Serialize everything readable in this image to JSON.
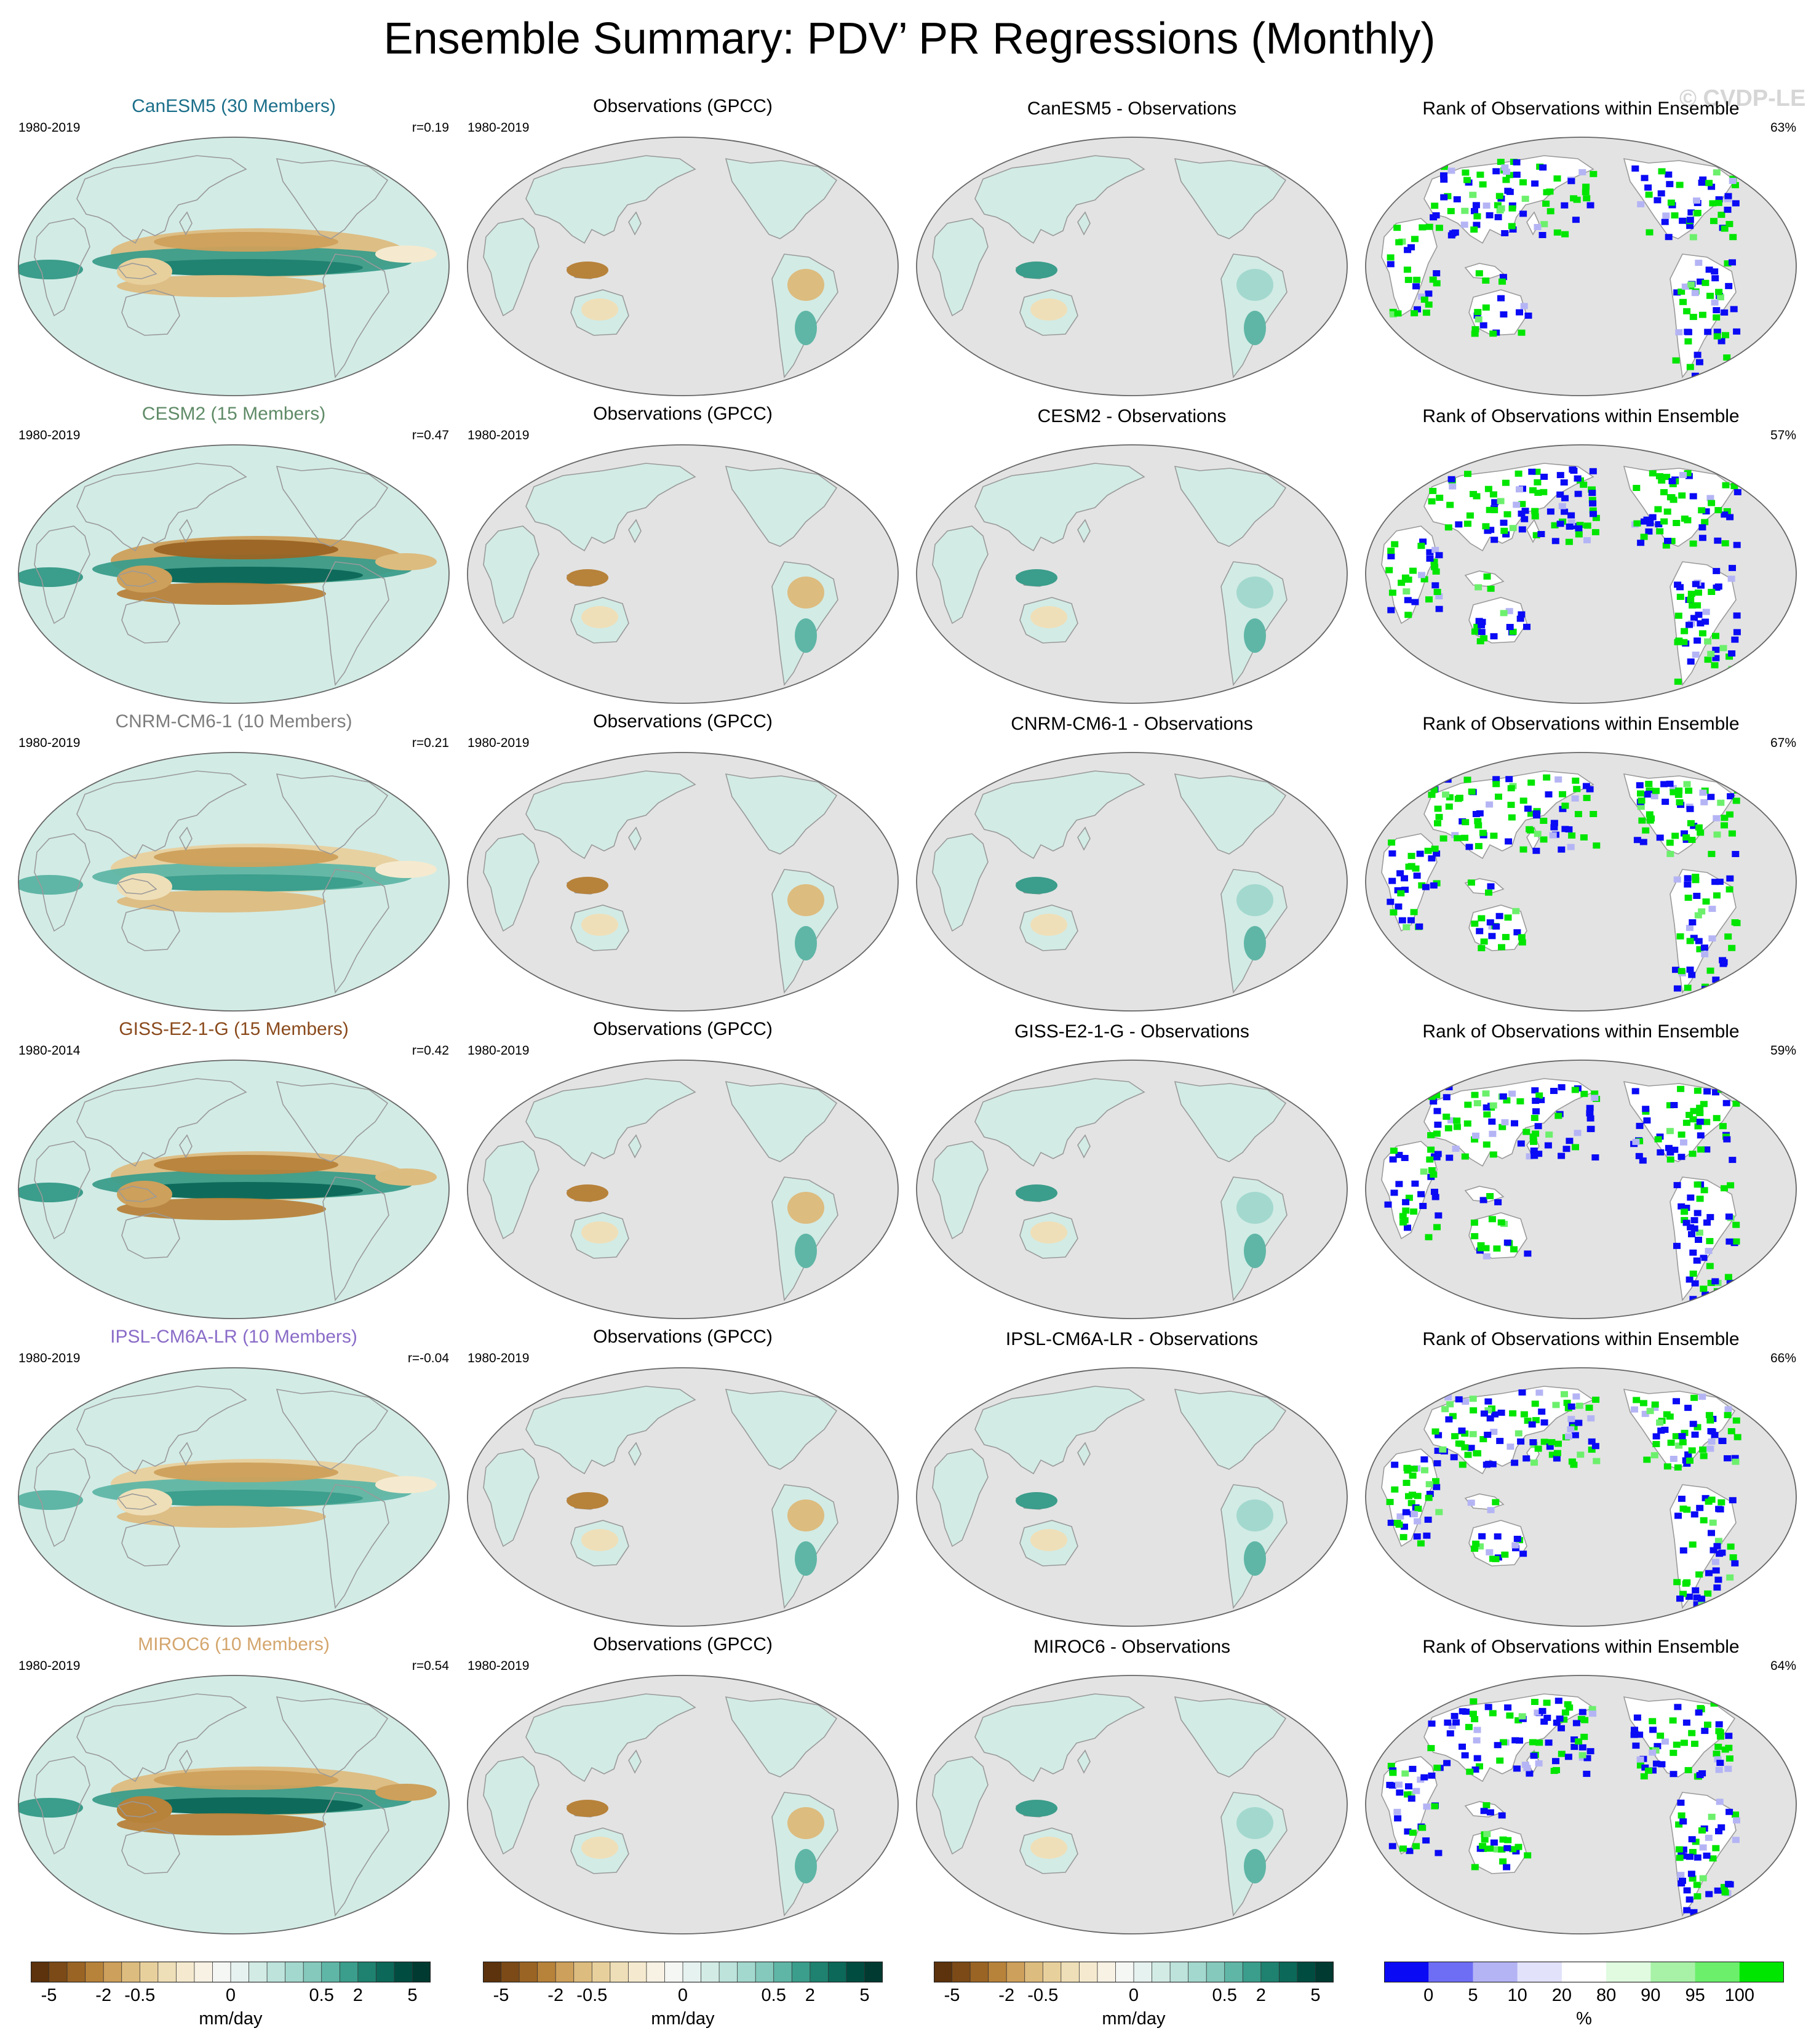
{
  "title": "Ensemble Summary: PDV’ PR Regressions (Monthly)",
  "watermark": "© CVDP-LE",
  "colors": {
    "ocean_gray": "#e3e3e3",
    "coast": "#9a9a9a",
    "neutral_fill": "#f4efe4",
    "brown_dark": "#6b3a10",
    "teal_dark": "#00584c",
    "rank_low": "#1212f0",
    "rank_high": "#00e600"
  },
  "chart_data": {
    "type": "heatmap",
    "projection": "Robinson (Pacific-centered)",
    "variable": "PDV’ PR regression",
    "columns": [
      "model ensemble mean",
      "observations",
      "model minus observations",
      "rank of observations within ensemble"
    ],
    "rows": [
      {
        "model": "CanESM5 (30 Members)",
        "model_color": "#1b6f8a",
        "model_years": "1980-2019",
        "r": "r=0.19",
        "obs_title": "Observations (GPCC)",
        "obs_years": "1980-2019",
        "diff_title": "CanESM5 - Observations",
        "rank_title": "Rank of Observations within Ensemble",
        "rank_pct": "63%",
        "model_pattern": {
          "equatorial_pacific": 3.0,
          "north_band": -1.5,
          "south_band": -0.6,
          "maritime_continent": -0.4
        }
      },
      {
        "model": "CESM2 (15 Members)",
        "model_color": "#5f8b67",
        "model_years": "1980-2019",
        "r": "r=0.47",
        "obs_title": "Observations (GPCC)",
        "obs_years": "1980-2019",
        "diff_title": "CESM2 - Observations",
        "rank_title": "Rank of Observations within Ensemble",
        "rank_pct": "57%",
        "model_pattern": {
          "equatorial_pacific": 3.5,
          "north_band": -3.0,
          "south_band": -2.0,
          "maritime_continent": -1.0
        }
      },
      {
        "model": "CNRM-CM6-1 (10 Members)",
        "model_color": "#7d7d7d",
        "model_years": "1980-2019",
        "r": "r=0.21",
        "obs_title": "Observations (GPCC)",
        "obs_years": "1980-2019",
        "diff_title": "CNRM-CM6-1 - Observations",
        "rank_title": "Rank of Observations within Ensemble",
        "rank_pct": "67%",
        "model_pattern": {
          "equatorial_pacific": 1.5,
          "north_band": -1.0,
          "south_band": -0.5,
          "maritime_continent": -0.3
        }
      },
      {
        "model": "GISS-E2-1-G (15 Members)",
        "model_color": "#8a4a1c",
        "model_years": "1980-2014",
        "r": "r=0.42",
        "obs_title": "Observations (GPCC)",
        "obs_years": "1980-2019",
        "diff_title": "GISS-E2-1-G - Observations",
        "rank_title": "Rank of Observations within Ensemble",
        "rank_pct": "59%",
        "model_pattern": {
          "equatorial_pacific": 4.0,
          "north_band": -2.0,
          "south_band": -2.0,
          "maritime_continent": -1.0
        }
      },
      {
        "model": "IPSL-CM6A-LR (10 Members)",
        "model_color": "#8a6cc8",
        "model_years": "1980-2019",
        "r": "r=-0.04",
        "obs_title": "Observations (GPCC)",
        "obs_years": "1980-2019",
        "diff_title": "IPSL-CM6A-LR - Observations",
        "rank_title": "Rank of Observations within Ensemble",
        "rank_pct": "66%",
        "model_pattern": {
          "equatorial_pacific": 1.5,
          "north_band": -1.0,
          "south_band": -0.5,
          "maritime_continent": -0.3
        }
      },
      {
        "model": "MIROC6 (10 Members)",
        "model_color": "#d4a66e",
        "model_years": "1980-2019",
        "r": "r=0.54",
        "obs_title": "Observations (GPCC)",
        "obs_years": "1980-2019",
        "diff_title": "MIROC6 - Observations",
        "rank_title": "Rank of Observations within Ensemble",
        "rank_pct": "64%",
        "model_pattern": {
          "equatorial_pacific": 3.5,
          "north_band": -1.5,
          "south_band": -2.5,
          "maritime_continent": -2.0
        }
      }
    ],
    "obs_pattern": {
      "maritime_continent": -2.0,
      "amazon": -0.8,
      "southeast_south_america": 0.6
    },
    "diverging_scale": {
      "levels": [
        -5,
        -4,
        -3,
        -2,
        -1,
        -0.5,
        -0.4,
        -0.3,
        -0.2,
        -0.1,
        0,
        0.1,
        0.2,
        0.3,
        0.4,
        0.5,
        1,
        2,
        3,
        4,
        5
      ],
      "tick_labels": [
        "-5",
        "-2",
        "-0.5",
        "0",
        "0.5",
        "2",
        "5"
      ],
      "tick_at_level_index": [
        0,
        3,
        5,
        10,
        15,
        17,
        20
      ],
      "colors": [
        "#5c330c",
        "#7b4a17",
        "#9a6424",
        "#b7823a",
        "#cda05b",
        "#ddbc7f",
        "#e8d09d",
        "#efdfb8",
        "#f5eacf",
        "#f8f2e4",
        "#f5f7f4",
        "#e6f2ef",
        "#d2ebe5",
        "#bde3db",
        "#a3d8ce",
        "#84c9bc",
        "#5fb6a6",
        "#3b9d8b",
        "#1f8170",
        "#0c6859",
        "#014c41",
        "#003a31"
      ],
      "unit": "mm/day"
    },
    "rank_scale": {
      "levels": [
        0,
        5,
        10,
        20,
        80,
        90,
        95,
        100
      ],
      "tick_labels": [
        "0",
        "5",
        "10",
        "20",
        "80",
        "90",
        "95",
        "100"
      ],
      "colors": [
        "#0a0af5",
        "#6e6ef5",
        "#b4b4f5",
        "#e2e2fa",
        "#ffffff",
        "#e0fbe0",
        "#a8f2a8",
        "#6cf06c",
        "#00e600"
      ],
      "unit": "%"
    }
  }
}
